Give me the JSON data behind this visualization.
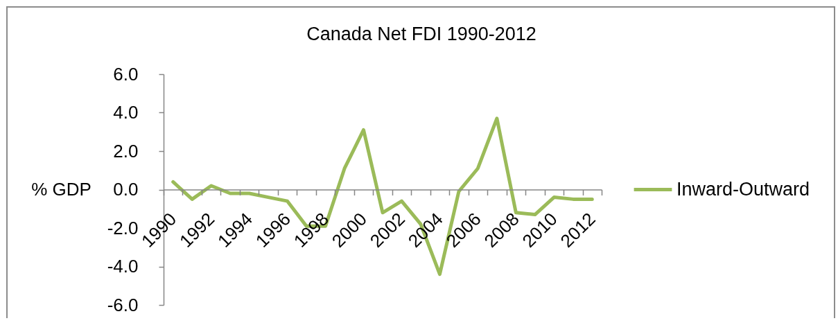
{
  "chart_data": {
    "type": "line",
    "title": "Canada Net FDI 1990-2012",
    "ylabel": "% GDP",
    "categories": [
      "1990",
      null,
      "1992",
      null,
      "1994",
      null,
      "1996",
      null,
      "1998",
      null,
      "2000",
      null,
      "2002",
      null,
      "2004",
      null,
      "2006",
      null,
      "2008",
      null,
      "2010",
      null,
      "2012"
    ],
    "series": [
      {
        "name": "Inward-Outward",
        "color": "#9bbb59",
        "values": [
          0.4,
          -0.5,
          0.2,
          -0.2,
          -0.2,
          -0.4,
          -0.6,
          -1.9,
          -1.9,
          1.1,
          3.1,
          -1.2,
          -0.6,
          -1.8,
          -4.4,
          -0.1,
          1.1,
          3.7,
          -1.2,
          -1.3,
          -0.4,
          -0.5,
          -0.5
        ]
      }
    ],
    "ylim": [
      -6,
      6
    ],
    "yticks": [
      {
        "value": -6,
        "label": "-6.0"
      },
      {
        "value": -4,
        "label": "-4.0"
      },
      {
        "value": -2,
        "label": "-2.0"
      },
      {
        "value": 0,
        "label": "0.0"
      },
      {
        "value": 2,
        "label": "2.0"
      },
      {
        "value": 4,
        "label": "4.0"
      },
      {
        "value": 6,
        "label": "6.0"
      }
    ],
    "grid": false,
    "legend": "right",
    "line_style": "solid"
  }
}
